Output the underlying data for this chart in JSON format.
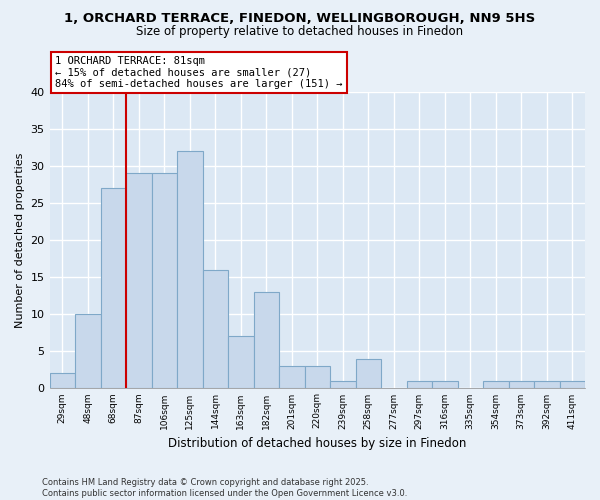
{
  "title": "1, ORCHARD TERRACE, FINEDON, WELLINGBOROUGH, NN9 5HS",
  "subtitle": "Size of property relative to detached houses in Finedon",
  "xlabel": "Distribution of detached houses by size in Finedon",
  "ylabel": "Number of detached properties",
  "bins": [
    "29sqm",
    "48sqm",
    "68sqm",
    "87sqm",
    "106sqm",
    "125sqm",
    "144sqm",
    "163sqm",
    "182sqm",
    "201sqm",
    "220sqm",
    "239sqm",
    "258sqm",
    "277sqm",
    "297sqm",
    "316sqm",
    "335sqm",
    "354sqm",
    "373sqm",
    "392sqm",
    "411sqm"
  ],
  "counts": [
    2,
    10,
    27,
    29,
    29,
    32,
    16,
    7,
    13,
    3,
    3,
    1,
    4,
    0,
    1,
    1,
    0,
    1,
    1,
    1,
    1
  ],
  "bar_color": "#c8d8eb",
  "bar_edge_color": "#7fa8c8",
  "vline_x": 3,
  "vline_color": "#cc0000",
  "annotation_text": "1 ORCHARD TERRACE: 81sqm\n← 15% of detached houses are smaller (27)\n84% of semi-detached houses are larger (151) →",
  "box_color": "#cc0000",
  "background_color": "#e8f0f8",
  "plot_bg_color": "#dce8f4",
  "ylim": [
    0,
    40
  ],
  "yticks": [
    0,
    5,
    10,
    15,
    20,
    25,
    30,
    35,
    40
  ],
  "footnote_line1": "Contains HM Land Registry data © Crown copyright and database right 2025.",
  "footnote_line2": "Contains public sector information licensed under the Open Government Licence v3.0."
}
